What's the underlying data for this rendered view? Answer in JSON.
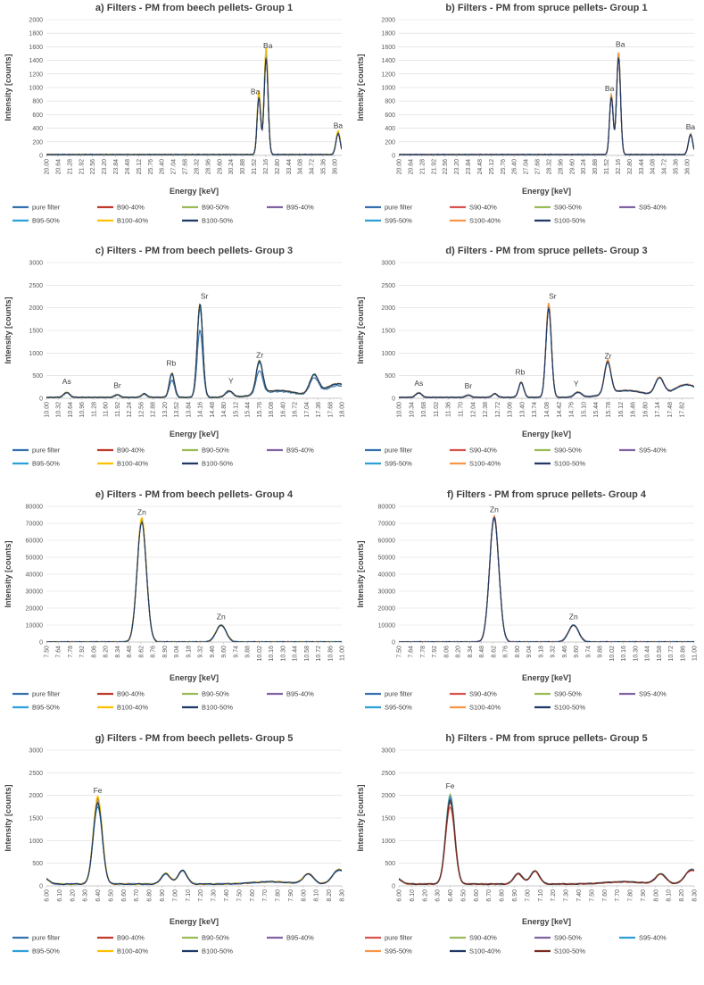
{
  "figure": {
    "palette": {
      "pure filter": "#3572b0",
      "B90-40%": "#c0392b",
      "B90-50%": "#9bbb59",
      "B95-40%": "#8064a2",
      "B95-50%": "#2e9fd8",
      "B100-40%": "#ffc000",
      "B100-50%": "#1f3864",
      "S90-40%": "#d9534f",
      "S90-50%": "#9bbb59",
      "S95-40%": "#8064a2",
      "S95-50%": "#2e9fd8",
      "S100-40%": "#f79646",
      "S100-50%": "#1f3864"
    }
  },
  "chart_data": [
    {
      "type": "line",
      "title": "a) Filters - PM from beech pellets- Group 1",
      "xlabel": "Energy [keV]",
      "ylabel": "Intensity [counts]",
      "xlim": [
        20.0,
        36.4
      ],
      "ylim": [
        0,
        2000
      ],
      "yticks": [
        0,
        200,
        400,
        600,
        800,
        1000,
        1200,
        1400,
        1600,
        1800,
        2000
      ],
      "xtick_labels": [
        "20.00",
        "20.64",
        "21.28",
        "21.92",
        "22.56",
        "23.20",
        "23.84",
        "24.48",
        "25.12",
        "25.76",
        "26.40",
        "27.04",
        "27.68",
        "28.32",
        "28.96",
        "29.60",
        "30.24",
        "30.88",
        "31.52",
        "32.16",
        "32.80",
        "33.44",
        "34.08",
        "34.72",
        "35.36",
        "36.00"
      ],
      "baseline": 10,
      "peaks": [
        {
          "x": 31.8,
          "h": 860,
          "w": 0.1
        },
        {
          "x": 32.2,
          "h": 1450,
          "w": 0.11
        },
        {
          "x": 36.2,
          "h": 320,
          "w": 0.12
        }
      ],
      "series": [
        {
          "name": "pure filter",
          "scale": 1.0
        },
        {
          "name": "B90-40%",
          "scale": 0.99
        },
        {
          "name": "B90-50%",
          "scale": 1.02
        },
        {
          "name": "B95-40%",
          "scale": 1.0
        },
        {
          "name": "B95-50%",
          "scale": 1.08
        },
        {
          "name": "B100-40%",
          "scale": 1.1
        },
        {
          "name": "B100-50%",
          "scale": 0.98
        }
      ],
      "annotations": [
        {
          "text": "Ba",
          "x": 31.6,
          "y": 900
        },
        {
          "text": "Ba",
          "x": 32.3,
          "y": 1580
        },
        {
          "text": "Ba",
          "x": 36.2,
          "y": 400
        }
      ],
      "legend_cols": 4
    },
    {
      "type": "line",
      "title": "b) Filters - PM from spruce pellets- Group 1",
      "xlabel": "Energy [keV]",
      "ylabel": "Intensity [counts]",
      "xlim": [
        20.0,
        36.4
      ],
      "ylim": [
        0,
        2000
      ],
      "yticks": [
        0,
        200,
        400,
        600,
        800,
        1000,
        1200,
        1400,
        1600,
        1800,
        2000
      ],
      "xtick_labels": [
        "20.00",
        "20.64",
        "21.28",
        "21.92",
        "22.56",
        "23.20",
        "23.84",
        "24.48",
        "25.12",
        "25.76",
        "26.40",
        "27.04",
        "27.68",
        "28.32",
        "28.96",
        "29.60",
        "30.24",
        "30.88",
        "31.52",
        "32.16",
        "32.80",
        "33.44",
        "34.08",
        "34.72",
        "35.36",
        "36.00"
      ],
      "baseline": 10,
      "peaks": [
        {
          "x": 31.8,
          "h": 860,
          "w": 0.1
        },
        {
          "x": 32.2,
          "h": 1450,
          "w": 0.11
        },
        {
          "x": 36.2,
          "h": 300,
          "w": 0.12
        }
      ],
      "series": [
        {
          "name": "pure filter",
          "scale": 1.0
        },
        {
          "name": "S90-40%",
          "scale": 1.02
        },
        {
          "name": "S90-50%",
          "scale": 1.01
        },
        {
          "name": "S95-40%",
          "scale": 1.0
        },
        {
          "name": "S95-50%",
          "scale": 1.03
        },
        {
          "name": "S100-40%",
          "scale": 1.05
        },
        {
          "name": "S100-50%",
          "scale": 0.99
        }
      ],
      "annotations": [
        {
          "text": "Ba",
          "x": 31.7,
          "y": 950
        },
        {
          "text": "Ba",
          "x": 32.3,
          "y": 1600
        },
        {
          "text": "Ba",
          "x": 36.2,
          "y": 380
        }
      ],
      "legend_cols": 4
    },
    {
      "type": "line",
      "title": "c) Filters - PM from beech pellets- Group 3",
      "xlabel": "Energy [keV]",
      "ylabel": "Intensity [counts]",
      "xlim": [
        10.0,
        18.0
      ],
      "ylim": [
        0,
        3000
      ],
      "yticks": [
        0,
        500,
        1000,
        1500,
        2000,
        2500,
        3000
      ],
      "xtick_labels": [
        "10.00",
        "10.32",
        "10.64",
        "10.96",
        "11.28",
        "11.60",
        "11.92",
        "12.24",
        "12.56",
        "12.88",
        "13.20",
        "13.52",
        "13.84",
        "14.16",
        "14.48",
        "14.80",
        "15.12",
        "15.44",
        "15.76",
        "16.08",
        "16.40",
        "16.72",
        "17.04",
        "17.36",
        "17.68",
        "18.00"
      ],
      "baseline": 20,
      "peaks": [
        {
          "x": 10.55,
          "h": 110,
          "w": 0.08
        },
        {
          "x": 11.92,
          "h": 60,
          "w": 0.07
        },
        {
          "x": 12.65,
          "h": 80,
          "w": 0.07
        },
        {
          "x": 13.4,
          "h": 530,
          "w": 0.07
        },
        {
          "x": 14.16,
          "h": 2060,
          "w": 0.075
        },
        {
          "x": 14.95,
          "h": 140,
          "w": 0.1
        },
        {
          "x": 15.77,
          "h": 720,
          "w": 0.09
        },
        {
          "x": 16.3,
          "h": 150,
          "w": 0.5
        },
        {
          "x": 17.25,
          "h": 430,
          "w": 0.12
        },
        {
          "x": 17.9,
          "h": 300,
          "w": 0.35
        }
      ],
      "series": [
        {
          "name": "pure filter",
          "scale": 0.72
        },
        {
          "name": "B90-40%",
          "scale": 1.0
        },
        {
          "name": "B90-50%",
          "scale": 0.98
        },
        {
          "name": "B95-40%",
          "scale": 1.0
        },
        {
          "name": "B95-50%",
          "scale": 0.95
        },
        {
          "name": "B100-40%",
          "scale": 1.01
        },
        {
          "name": "B100-50%",
          "scale": 1.0
        }
      ],
      "annotations": [
        {
          "text": "As",
          "x": 10.55,
          "y": 320
        },
        {
          "text": "Br",
          "x": 11.92,
          "y": 230
        },
        {
          "text": "Rb",
          "x": 13.38,
          "y": 720
        },
        {
          "text": "Sr",
          "x": 14.28,
          "y": 2200
        },
        {
          "text": "Y",
          "x": 15.0,
          "y": 330
        },
        {
          "text": "Zr",
          "x": 15.78,
          "y": 900
        }
      ],
      "legend_cols": 4
    },
    {
      "type": "line",
      "title": "d) Filters - PM from spruce pellets- Group 3",
      "xlabel": "Energy [keV]",
      "ylabel": "Intensity [counts]",
      "xlim": [
        10.0,
        18.16
      ],
      "ylim": [
        0,
        3000
      ],
      "yticks": [
        0,
        500,
        1000,
        1500,
        2000,
        2500,
        3000
      ],
      "xtick_labels": [
        "10.00",
        "10.34",
        "10.68",
        "11.02",
        "11.36",
        "11.70",
        "12.04",
        "12.38",
        "12.72",
        "13.06",
        "13.40",
        "13.74",
        "14.08",
        "14.42",
        "14.76",
        "15.10",
        "15.44",
        "15.78",
        "16.12",
        "16.46",
        "16.80",
        "17.14",
        "17.48",
        "17.82"
      ],
      "baseline": 20,
      "peaks": [
        {
          "x": 10.55,
          "h": 100,
          "w": 0.08
        },
        {
          "x": 11.92,
          "h": 50,
          "w": 0.07
        },
        {
          "x": 12.65,
          "h": 80,
          "w": 0.07
        },
        {
          "x": 13.38,
          "h": 330,
          "w": 0.07
        },
        {
          "x": 14.14,
          "h": 1980,
          "w": 0.075
        },
        {
          "x": 14.95,
          "h": 110,
          "w": 0.1
        },
        {
          "x": 15.77,
          "h": 700,
          "w": 0.09
        },
        {
          "x": 16.3,
          "h": 150,
          "w": 0.5
        },
        {
          "x": 17.2,
          "h": 380,
          "w": 0.12
        },
        {
          "x": 17.95,
          "h": 280,
          "w": 0.35
        }
      ],
      "series": [
        {
          "name": "pure filter",
          "scale": 1.0
        },
        {
          "name": "S90-40%",
          "scale": 1.03
        },
        {
          "name": "S90-50%",
          "scale": 1.02
        },
        {
          "name": "S95-40%",
          "scale": 1.0
        },
        {
          "name": "S95-50%",
          "scale": 0.99
        },
        {
          "name": "S100-40%",
          "scale": 1.06
        },
        {
          "name": "S100-50%",
          "scale": 1.0
        }
      ],
      "annotations": [
        {
          "text": "As",
          "x": 10.55,
          "y": 280
        },
        {
          "text": "Br",
          "x": 11.92,
          "y": 220
        },
        {
          "text": "Rb",
          "x": 13.35,
          "y": 520
        },
        {
          "text": "Sr",
          "x": 14.25,
          "y": 2200
        },
        {
          "text": "Y",
          "x": 14.9,
          "y": 270
        },
        {
          "text": "Zr",
          "x": 15.78,
          "y": 880
        }
      ],
      "legend_cols": 4
    },
    {
      "type": "line",
      "title": "e) Filters - PM from beech pellets- Group 4",
      "xlabel": "Energy [keV]",
      "ylabel": "Intensity [counts]",
      "xlim": [
        7.5,
        11.0
      ],
      "ylim": [
        0,
        80000
      ],
      "yticks": [
        0,
        10000,
        20000,
        30000,
        40000,
        50000,
        60000,
        70000,
        80000
      ],
      "xtick_labels": [
        "7.50",
        "7.64",
        "7.78",
        "7.92",
        "8.06",
        "8.20",
        "8.34",
        "8.48",
        "8.62",
        "8.76",
        "8.90",
        "9.04",
        "9.18",
        "9.32",
        "9.46",
        "9.60",
        "9.74",
        "9.88",
        "10.02",
        "10.16",
        "10.30",
        "10.44",
        "10.58",
        "10.72",
        "10.86",
        "11.00"
      ],
      "baseline": 0,
      "peaks": [
        {
          "x": 8.63,
          "h": 72000,
          "w": 0.055
        },
        {
          "x": 9.57,
          "h": 10000,
          "w": 0.06
        }
      ],
      "series": [
        {
          "name": "pure filter",
          "scale": 1.0
        },
        {
          "name": "B90-40%",
          "scale": 1.01
        },
        {
          "name": "B90-50%",
          "scale": 0.99
        },
        {
          "name": "B95-40%",
          "scale": 1.0
        },
        {
          "name": "B95-50%",
          "scale": 1.0
        },
        {
          "name": "B100-40%",
          "scale": 1.02
        },
        {
          "name": "B100-50%",
          "scale": 0.98
        }
      ],
      "annotations": [
        {
          "text": "Zn",
          "x": 8.63,
          "y": 75000
        },
        {
          "text": "Zn",
          "x": 9.57,
          "y": 13500
        }
      ],
      "legend_cols": 4
    },
    {
      "type": "line",
      "title": "f) Filters - PM from spruce pellets- Group 4",
      "xlabel": "Energy [keV]",
      "ylabel": "Intensity [counts]",
      "xlim": [
        7.5,
        11.0
      ],
      "ylim": [
        0,
        80000
      ],
      "yticks": [
        0,
        10000,
        20000,
        30000,
        40000,
        50000,
        60000,
        70000,
        80000
      ],
      "xtick_labels": [
        "7.50",
        "7.64",
        "7.78",
        "7.92",
        "8.06",
        "8.20",
        "8.34",
        "8.48",
        "8.62",
        "8.76",
        "8.90",
        "9.04",
        "9.18",
        "9.32",
        "9.46",
        "9.60",
        "9.74",
        "9.88",
        "10.02",
        "10.16",
        "10.30",
        "10.44",
        "10.58",
        "10.72",
        "10.86",
        "11.00"
      ],
      "baseline": 0,
      "peaks": [
        {
          "x": 8.63,
          "h": 73500,
          "w": 0.055
        },
        {
          "x": 9.57,
          "h": 10000,
          "w": 0.06
        }
      ],
      "series": [
        {
          "name": "pure filter",
          "scale": 1.0
        },
        {
          "name": "S90-40%",
          "scale": 1.01
        },
        {
          "name": "S90-50%",
          "scale": 1.0
        },
        {
          "name": "S95-40%",
          "scale": 0.99
        },
        {
          "name": "S95-50%",
          "scale": 1.0
        },
        {
          "name": "S100-40%",
          "scale": 1.01
        },
        {
          "name": "S100-50%",
          "scale": 1.0
        }
      ],
      "annotations": [
        {
          "text": "Zn",
          "x": 8.63,
          "y": 76500
        },
        {
          "text": "Zn",
          "x": 9.57,
          "y": 13500
        }
      ],
      "legend_cols": 4
    },
    {
      "type": "line",
      "title": "g) Filters - PM from beech pellets- Group 5",
      "xlabel": "Energy [keV]",
      "ylabel": "Intensity [counts]",
      "xlim": [
        6.0,
        8.3
      ],
      "ylim": [
        0,
        3000
      ],
      "yticks": [
        0,
        500,
        1000,
        1500,
        2000,
        2500,
        3000
      ],
      "xtick_labels": [
        "6.00",
        "6.10",
        "6.20",
        "6.30",
        "6.40",
        "6.50",
        "6.60",
        "6.70",
        "6.80",
        "6.90",
        "7.00",
        "7.10",
        "7.20",
        "7.30",
        "7.40",
        "7.50",
        "7.60",
        "7.70",
        "7.80",
        "7.90",
        "8.00",
        "8.10",
        "8.20",
        "8.30"
      ],
      "baseline": 40,
      "peaks": [
        {
          "x": 5.97,
          "h": 160,
          "w": 0.04
        },
        {
          "x": 6.4,
          "h": 1850,
          "w": 0.035
        },
        {
          "x": 6.93,
          "h": 230,
          "w": 0.035
        },
        {
          "x": 7.06,
          "h": 300,
          "w": 0.035
        },
        {
          "x": 7.75,
          "h": 50,
          "w": 0.15
        },
        {
          "x": 8.04,
          "h": 220,
          "w": 0.04
        },
        {
          "x": 8.28,
          "h": 320,
          "w": 0.05
        }
      ],
      "series": [
        {
          "name": "pure filter",
          "scale": 0.93
        },
        {
          "name": "B90-40%",
          "scale": 1.0
        },
        {
          "name": "B90-50%",
          "scale": 1.0
        },
        {
          "name": "B95-40%",
          "scale": 1.02
        },
        {
          "name": "B95-50%",
          "scale": 0.96
        },
        {
          "name": "B100-40%",
          "scale": 1.05
        },
        {
          "name": "B100-50%",
          "scale": 0.97
        }
      ],
      "annotations": [
        {
          "text": "Fe",
          "x": 6.4,
          "y": 2050
        }
      ],
      "legend_cols": 4
    },
    {
      "type": "line",
      "title": "h) Filters - PM from spruce pellets- Group 5",
      "xlabel": "Energy [keV]",
      "ylabel": "Intensity [counts]",
      "xlim": [
        6.0,
        8.3
      ],
      "ylim": [
        0,
        3000
      ],
      "yticks": [
        0,
        500,
        1000,
        1500,
        2000,
        2500,
        3000
      ],
      "xtick_labels": [
        "6.00",
        "6.10",
        "6.20",
        "6.30",
        "6.40",
        "6.50",
        "6.60",
        "6.70",
        "6.80",
        "6.90",
        "7.00",
        "7.10",
        "7.20",
        "7.30",
        "7.40",
        "7.50",
        "7.60",
        "7.70",
        "7.80",
        "7.90",
        "8.00",
        "8.10",
        "8.20",
        "8.30"
      ],
      "baseline": 40,
      "peaks": [
        {
          "x": 5.97,
          "h": 160,
          "w": 0.04
        },
        {
          "x": 6.4,
          "h": 1900,
          "w": 0.035
        },
        {
          "x": 6.93,
          "h": 230,
          "w": 0.035
        },
        {
          "x": 7.06,
          "h": 290,
          "w": 0.035
        },
        {
          "x": 7.75,
          "h": 50,
          "w": 0.15
        },
        {
          "x": 8.04,
          "h": 220,
          "w": 0.04
        },
        {
          "x": 8.28,
          "h": 320,
          "w": 0.05
        }
      ],
      "series": [
        {
          "name": "pure filter",
          "color": "#d9534f",
          "scale": 0.9
        },
        {
          "name": "S90-40%",
          "color": "#9bbb59",
          "scale": 1.05
        },
        {
          "name": "S90-50%",
          "color": "#8064a2",
          "scale": 1.0
        },
        {
          "name": "S95-40%",
          "color": "#2e9fd8",
          "scale": 1.02
        },
        {
          "name": "S95-50%",
          "color": "#f79646",
          "scale": 0.97
        },
        {
          "name": "S100-40%",
          "color": "#1f3864",
          "scale": 0.98
        },
        {
          "name": "S100-50%",
          "color": "#7b2c20",
          "scale": 0.95
        }
      ],
      "annotations": [
        {
          "text": "Fe",
          "x": 6.4,
          "y": 2150
        }
      ],
      "legend_cols": 4
    }
  ]
}
